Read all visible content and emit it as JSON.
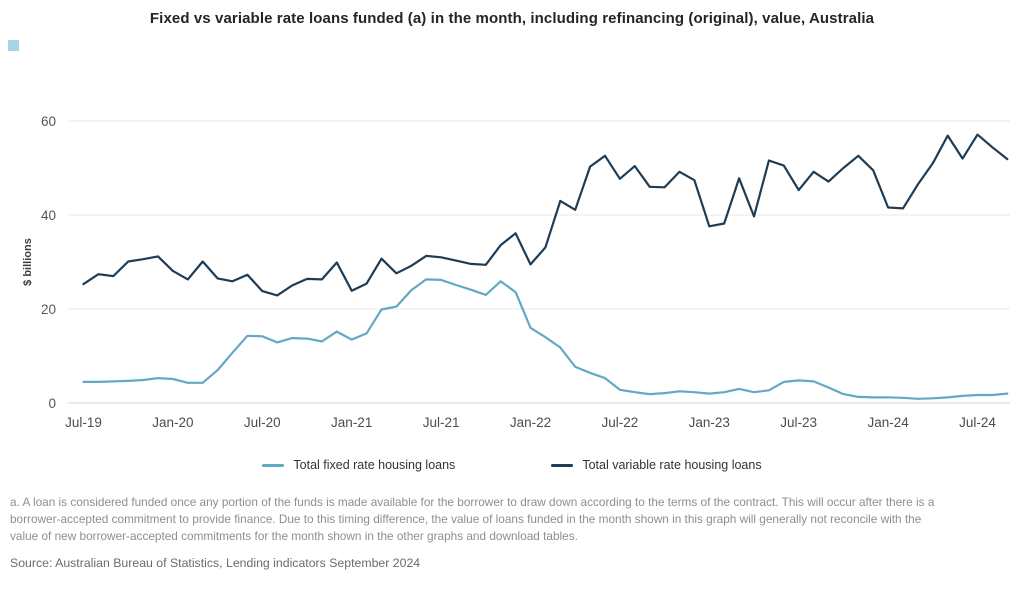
{
  "accent": {
    "color": "#a6d4e4"
  },
  "chart_data": {
    "type": "line",
    "title": "Fixed vs variable rate loans funded (a) in the month, including refinancing (original), value, Australia",
    "xlabel": "",
    "ylabel": "$ billions",
    "ylim": [
      0,
      60
    ],
    "yticks": [
      0,
      20,
      40,
      60
    ],
    "grid": "horizontal",
    "legend_position": "bottom",
    "x_ticks": [
      {
        "label": "Jul-19",
        "month_index": 0
      },
      {
        "label": "Jan-20",
        "month_index": 6
      },
      {
        "label": "Jul-20",
        "month_index": 12
      },
      {
        "label": "Jan-21",
        "month_index": 18
      },
      {
        "label": "Jul-21",
        "month_index": 24
      },
      {
        "label": "Jan-22",
        "month_index": 30
      },
      {
        "label": "Jul-22",
        "month_index": 36
      },
      {
        "label": "Jan-23",
        "month_index": 42
      },
      {
        "label": "Jul-23",
        "month_index": 48
      },
      {
        "label": "Jan-24",
        "month_index": 54
      },
      {
        "label": "Jul-24",
        "month_index": 60
      }
    ],
    "months": [
      "Jul-19",
      "Aug-19",
      "Sep-19",
      "Oct-19",
      "Nov-19",
      "Dec-19",
      "Jan-20",
      "Feb-20",
      "Mar-20",
      "Apr-20",
      "May-20",
      "Jun-20",
      "Jul-20",
      "Aug-20",
      "Sep-20",
      "Oct-20",
      "Nov-20",
      "Dec-20",
      "Jan-21",
      "Feb-21",
      "Mar-21",
      "Apr-21",
      "May-21",
      "Jun-21",
      "Jul-21",
      "Aug-21",
      "Sep-21",
      "Oct-21",
      "Nov-21",
      "Dec-21",
      "Jan-22",
      "Feb-22",
      "Mar-22",
      "Apr-22",
      "May-22",
      "Jun-22",
      "Jul-22",
      "Aug-22",
      "Sep-22",
      "Oct-22",
      "Nov-22",
      "Dec-22",
      "Jan-23",
      "Feb-23",
      "Mar-23",
      "Apr-23",
      "May-23",
      "Jun-23",
      "Jul-23",
      "Aug-23",
      "Sep-23",
      "Oct-23",
      "Nov-23",
      "Dec-23",
      "Jan-24",
      "Feb-24",
      "Mar-24",
      "Apr-24",
      "May-24",
      "Jun-24",
      "Jul-24",
      "Aug-24",
      "Sep-24"
    ],
    "series": [
      {
        "name": "Total fixed rate housing loans",
        "color": "#63a8c4",
        "values": [
          4.5,
          4.5,
          4.6,
          4.7,
          4.9,
          5.3,
          5.1,
          4.3,
          4.3,
          7.0,
          10.7,
          14.3,
          14.2,
          12.9,
          13.8,
          13.7,
          13.1,
          15.2,
          13.5,
          14.8,
          19.9,
          20.5,
          24.0,
          26.3,
          26.2,
          25.1,
          24.1,
          23.0,
          25.9,
          23.6,
          16.0,
          14.0,
          11.8,
          7.7,
          6.4,
          5.3,
          2.8,
          2.3,
          1.9,
          2.1,
          2.5,
          2.3,
          2.0,
          2.3,
          3.0,
          2.3,
          2.7,
          4.5,
          4.8,
          4.6,
          3.3,
          1.9,
          1.3,
          1.2,
          1.2,
          1.1,
          0.9,
          1.0,
          1.2,
          1.5,
          1.7,
          1.7,
          2.0
        ]
      },
      {
        "name": "Total variable rate housing loans",
        "color": "#1e3c55",
        "values": [
          25.3,
          27.4,
          27.0,
          30.1,
          30.6,
          31.2,
          28.1,
          26.3,
          30.1,
          26.5,
          25.9,
          27.3,
          23.8,
          22.9,
          25.0,
          26.4,
          26.3,
          29.9,
          23.9,
          25.4,
          30.7,
          27.6,
          29.2,
          31.3,
          31.0,
          30.3,
          29.6,
          29.4,
          33.6,
          36.1,
          29.5,
          33.1,
          43.0,
          41.1,
          50.3,
          52.6,
          47.7,
          50.4,
          46.0,
          45.9,
          49.2,
          47.4,
          37.6,
          38.2,
          47.8,
          39.7,
          51.6,
          50.5,
          45.3,
          49.2,
          47.1,
          50.0,
          52.6,
          49.5,
          41.6,
          41.4,
          46.5,
          51.0,
          56.9,
          52.0,
          57.1,
          54.4,
          51.9
        ]
      }
    ]
  },
  "footnote": {
    "text": "a. A loan is considered funded once any portion of the funds is made available for the borrower to draw down according to the terms of the contract. This will occur after there is a borrower-accepted commitment to provide finance. Due to this timing difference, the value of loans funded in the month shown in this graph will generally not reconcile with the value of new borrower-accepted commitments for the month shown in the other graphs and download tables."
  },
  "source": {
    "text": "Source: Australian Bureau of Statistics, Lending indicators September 2024"
  }
}
